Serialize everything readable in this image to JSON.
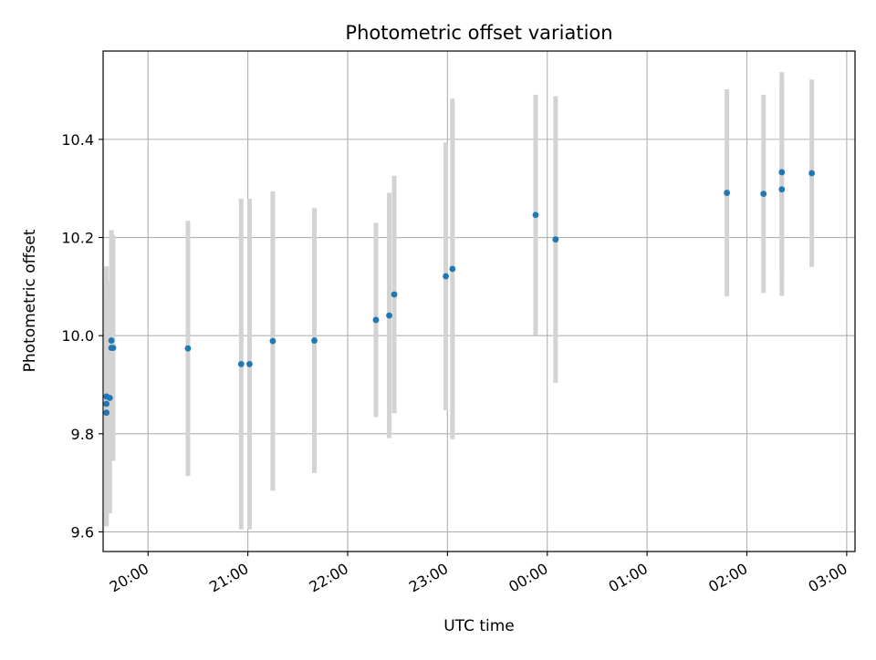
{
  "chart_data": {
    "type": "scatter",
    "title": "Photometric offset variation",
    "xlabel": "UTC time",
    "ylabel": "Photometric offset",
    "xaxis_kind": "time",
    "xlim": [
      "19:33",
      "03:05"
    ],
    "ylim": [
      9.56,
      10.58
    ],
    "x_ticks": [
      "20:00",
      "21:00",
      "22:00",
      "23:00",
      "00:00",
      "01:00",
      "02:00",
      "03:00"
    ],
    "y_ticks": [
      9.6,
      9.8,
      10.0,
      10.2,
      10.4
    ],
    "grid": true,
    "errorbar_color": "#d3d3d3",
    "marker_color": "#1f77b4",
    "points": [
      {
        "x": "19:35",
        "y": 9.876,
        "err": 0.265
      },
      {
        "x": "19:35",
        "y": 9.861,
        "err": 0.245
      },
      {
        "x": "19:35",
        "y": 9.843,
        "err": 0.23
      },
      {
        "x": "19:37",
        "y": 9.873,
        "err": 0.235
      },
      {
        "x": "19:38",
        "y": 9.99,
        "err": 0.225
      },
      {
        "x": "19:38",
        "y": 9.975,
        "err": 0.23
      },
      {
        "x": "19:39",
        "y": 9.975,
        "err": 0.23
      },
      {
        "x": "20:24",
        "y": 9.974,
        "err": 0.26
      },
      {
        "x": "20:56",
        "y": 9.942,
        "err": 0.337
      },
      {
        "x": "21:01",
        "y": 9.942,
        "err": 0.337
      },
      {
        "x": "21:15",
        "y": 9.989,
        "err": 0.305
      },
      {
        "x": "21:40",
        "y": 9.99,
        "err": 0.27
      },
      {
        "x": "22:17",
        "y": 10.032,
        "err": 0.198
      },
      {
        "x": "22:25",
        "y": 10.041,
        "err": 0.25
      },
      {
        "x": "22:28",
        "y": 10.084,
        "err": 0.242
      },
      {
        "x": "22:59",
        "y": 10.121,
        "err": 0.273
      },
      {
        "x": "23:03",
        "y": 10.136,
        "err": 0.347
      },
      {
        "x": "23:53",
        "y": 10.246,
        "err": 0.245
      },
      {
        "x": "00:05",
        "y": 10.196,
        "err": 0.292
      },
      {
        "x": "01:48",
        "y": 10.291,
        "err": 0.211
      },
      {
        "x": "02:10",
        "y": 10.289,
        "err": 0.202
      },
      {
        "x": "02:21",
        "y": 10.333,
        "err": 0.204
      },
      {
        "x": "02:21",
        "y": 10.298,
        "err": 0.217
      },
      {
        "x": "02:39",
        "y": 10.331,
        "err": 0.191
      }
    ]
  }
}
